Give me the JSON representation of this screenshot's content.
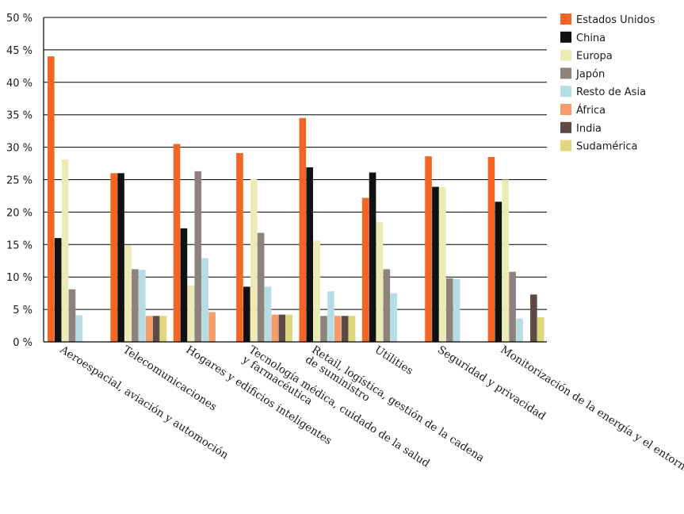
{
  "chart_data": {
    "type": "bar",
    "ylim": [
      0,
      50
    ],
    "y_tick_step": 5,
    "y_tick_suffix": " %",
    "grid": true,
    "legend_position": "top-right",
    "categories": [
      [
        "Aeroespacial, aviación y automoción"
      ],
      [
        "Telecomunicaciones"
      ],
      [
        "Hogares y edificios inteligentes"
      ],
      [
        "Tecnología médica, cuidado de la salud",
        "y farmacéutica"
      ],
      [
        "Retail, logística, gestión de la cadena",
        "de suministro"
      ],
      [
        "Utilities"
      ],
      [
        "Seguridad y privacidad"
      ],
      [
        "Monitorización de la energía y el entorno"
      ]
    ],
    "series": [
      {
        "name": "Estados Unidos",
        "color": "#f26522",
        "values": [
          44.0,
          26.0,
          30.5,
          29.1,
          34.5,
          22.2,
          28.6,
          28.5
        ]
      },
      {
        "name": "China",
        "color": "#111111",
        "values": [
          16.0,
          26.0,
          17.5,
          8.5,
          26.9,
          26.1,
          23.9,
          21.6
        ]
      },
      {
        "name": "Europa",
        "color": "#ecebb6",
        "values": [
          28.1,
          14.9,
          8.7,
          25.1,
          15.6,
          18.5,
          23.9,
          25.0
        ]
      },
      {
        "name": "Japón",
        "color": "#8e827d",
        "values": [
          8.1,
          11.2,
          26.3,
          16.8,
          4.0,
          11.2,
          9.8,
          10.8
        ]
      },
      {
        "name": "Resto de Asia",
        "color": "#b5dde3",
        "values": [
          4.1,
          11.1,
          12.9,
          8.5,
          7.8,
          7.5,
          9.7,
          3.6
        ]
      },
      {
        "name": "África",
        "color": "#f59c6a",
        "values": [
          null,
          4.0,
          4.6,
          4.2,
          4.0,
          null,
          null,
          null
        ]
      },
      {
        "name": "India",
        "color": "#5d4b43",
        "values": [
          null,
          4.0,
          null,
          4.2,
          4.0,
          null,
          null,
          7.3
        ]
      },
      {
        "name": "Sudamérica",
        "color": "#e0d67c",
        "values": [
          null,
          4.0,
          null,
          4.2,
          4.0,
          null,
          null,
          3.8
        ]
      }
    ]
  }
}
